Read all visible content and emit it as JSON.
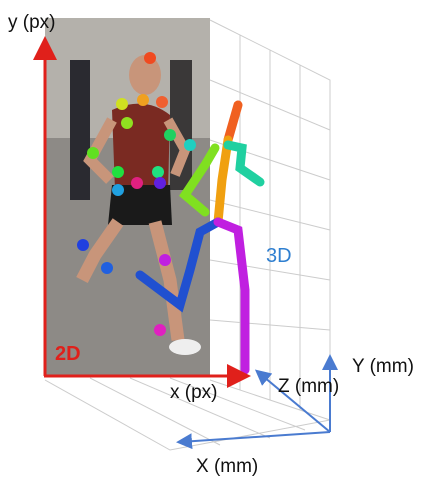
{
  "labels": {
    "y_2d": "y (px)",
    "x_2d": "x (px)",
    "tag_2d": "2D",
    "tag_3d": "3D",
    "y_3d": "Y (mm)",
    "z_3d": "Z (mm)",
    "x_3d": "X (mm)"
  }
}
